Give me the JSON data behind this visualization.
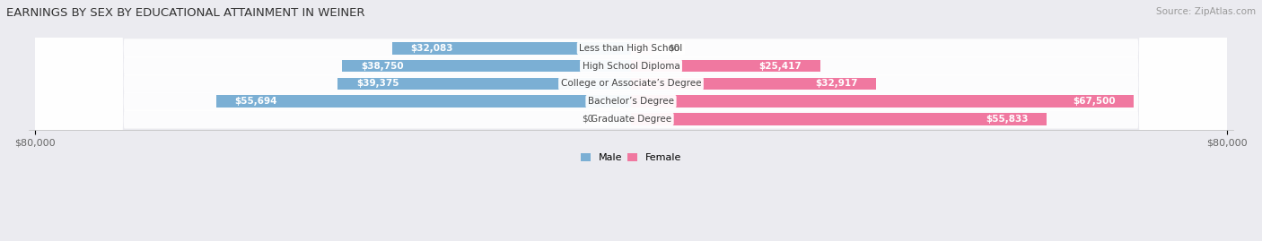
{
  "title": "EARNINGS BY SEX BY EDUCATIONAL ATTAINMENT IN WEINER",
  "source": "Source: ZipAtlas.com",
  "categories": [
    "Less than High School",
    "High School Diploma",
    "College or Associate’s Degree",
    "Bachelor’s Degree",
    "Graduate Degree"
  ],
  "male_values": [
    32083,
    38750,
    39375,
    55694,
    0
  ],
  "female_values": [
    0,
    25417,
    32917,
    67500,
    55833
  ],
  "male_labels": [
    "$32,083",
    "$38,750",
    "$39,375",
    "$55,694",
    "$0"
  ],
  "female_labels": [
    "$0",
    "$25,417",
    "$32,917",
    "$67,500",
    "$55,833"
  ],
  "male_color": "#7bafd4",
  "male_color_light": "#b8d4e8",
  "female_color": "#f078a0",
  "female_color_light": "#f0b8cc",
  "axis_max": 80000,
  "background_color": "#ebebf0",
  "row_bg_color": "#ffffff",
  "title_fontsize": 9.5,
  "source_fontsize": 7.5,
  "label_fontsize": 7.5,
  "tick_fontsize": 8
}
